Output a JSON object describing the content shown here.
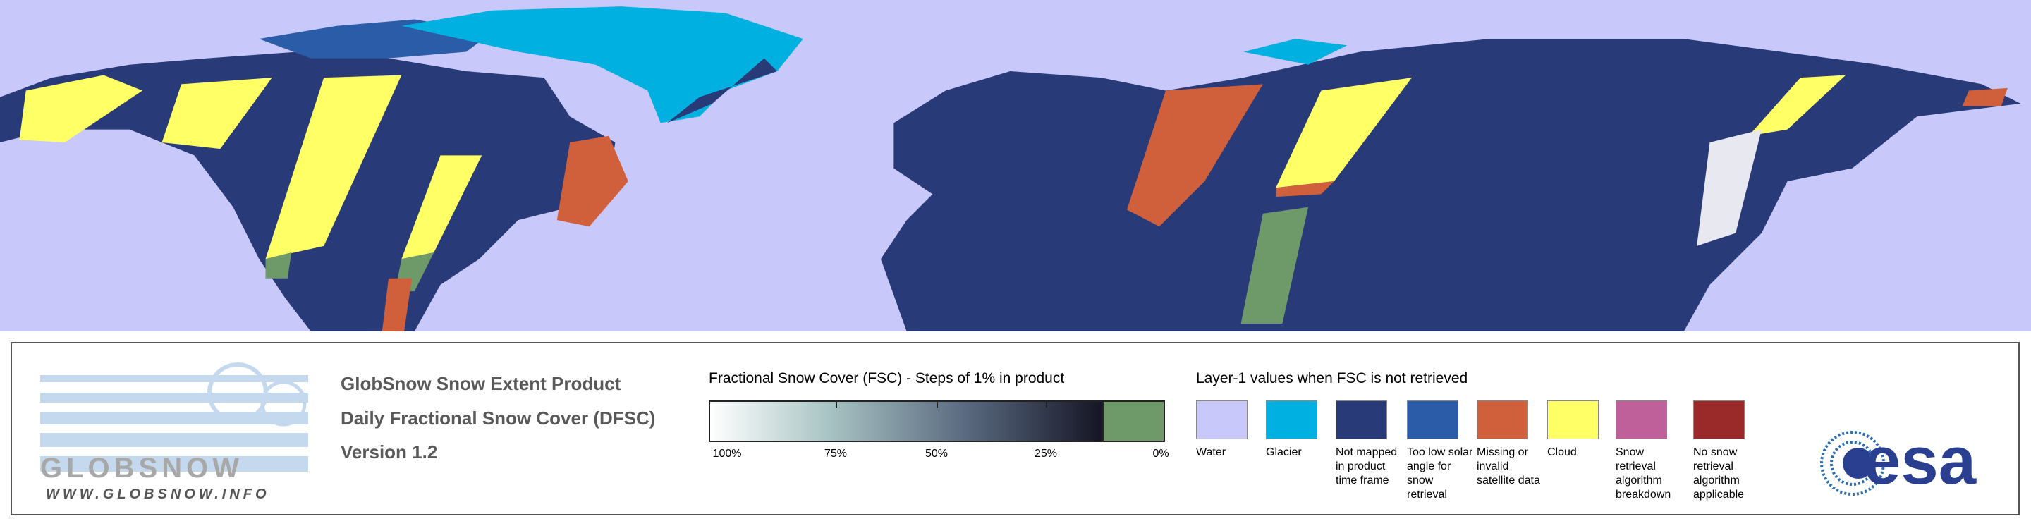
{
  "logo": {
    "name": "GLOBSNOW",
    "url": "WWW.GLOBSNOW.INFO",
    "agency": "esa"
  },
  "product": {
    "lines": [
      "GlobSnow Snow Extent Product",
      "Daily Fractional Snow Cover (DFSC)",
      "Version 1.2"
    ]
  },
  "fsc_legend": {
    "title": "Fractional Snow Cover (FSC) - Steps of 1% in product",
    "ticks": [
      "100%",
      "75%",
      "50%",
      "25%",
      "0%"
    ]
  },
  "layer1_legend": {
    "title": "Layer-1 values when FSC is not retrieved",
    "items": [
      {
        "label": "Water",
        "color": "#c8c8fa"
      },
      {
        "label": "Glacier",
        "color": "#00b0e0"
      },
      {
        "label": "Not mapped in product time frame",
        "color": "#283a78"
      },
      {
        "label": "Too low solar angle for snow retrieval",
        "color": "#2a5ca8"
      },
      {
        "label": "Missing or invalid satellite data",
        "color": "#d0603c"
      },
      {
        "label": "Cloud",
        "color": "#ffff66"
      },
      {
        "label": "Snow retrieval algorithm breakdown",
        "color": "#c0609a"
      },
      {
        "label": "No snow retrieval algorithm applicable",
        "color": "#9a2a2a"
      }
    ]
  }
}
